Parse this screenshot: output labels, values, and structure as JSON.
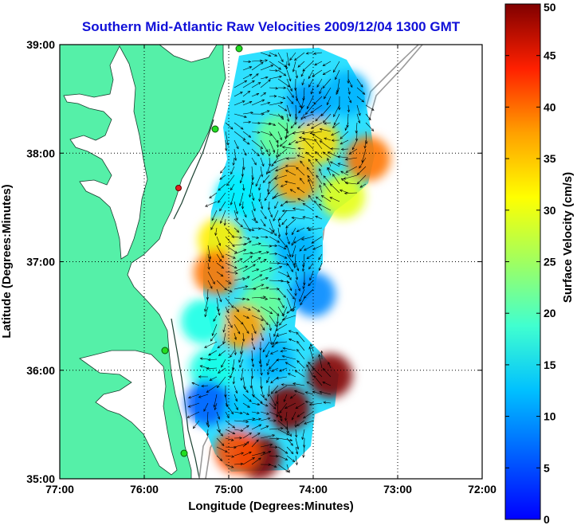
{
  "chart_data": {
    "type": "heatmap",
    "title": "Southern Mid-Atlantic Raw Velocities 2009/12/04 1300 GMT",
    "xlabel": "Longitude (Degrees:Minutes)",
    "ylabel": "Latitude (Degrees:Minutes)",
    "colorbar_label": "Surface Velocity (cm/s)",
    "xlim": [
      -77,
      -72
    ],
    "ylim": [
      35,
      39
    ],
    "clim": [
      0,
      50
    ],
    "x_ticks": [
      -77,
      -76,
      -75,
      -74,
      -73,
      -72
    ],
    "x_tick_labels": [
      "77:00",
      "76:00",
      "75:00",
      "74:00",
      "73:00",
      "72:00"
    ],
    "y_ticks": [
      35,
      36,
      37,
      38,
      39
    ],
    "y_tick_labels": [
      "35:00",
      "36:00",
      "37:00",
      "38:00",
      "39:00"
    ],
    "colorbar_ticks": [
      0,
      5,
      10,
      15,
      20,
      25,
      30,
      35,
      40,
      45,
      50
    ],
    "colorbar_tick_labels": [
      "0",
      "5",
      "10",
      "15",
      "20",
      "25",
      "30",
      "35",
      "40",
      "45",
      "50"
    ],
    "grid": true,
    "regions": [
      {
        "lon": -74.05,
        "lat": 38.45,
        "value": 14
      },
      {
        "lon": -73.6,
        "lat": 38.55,
        "value": 15
      },
      {
        "lon": -74.4,
        "lat": 38.15,
        "value": 24
      },
      {
        "lon": -73.95,
        "lat": 38.1,
        "value": 33
      },
      {
        "lon": -73.35,
        "lat": 37.95,
        "value": 38
      },
      {
        "lon": -74.2,
        "lat": 37.75,
        "value": 36
      },
      {
        "lon": -73.65,
        "lat": 37.6,
        "value": 30
      },
      {
        "lon": -74.9,
        "lat": 37.6,
        "value": 18
      },
      {
        "lon": -75.1,
        "lat": 37.2,
        "value": 32
      },
      {
        "lon": -75.15,
        "lat": 36.9,
        "value": 38
      },
      {
        "lon": -74.7,
        "lat": 37.0,
        "value": 22
      },
      {
        "lon": -74.2,
        "lat": 37.1,
        "value": 15
      },
      {
        "lon": -74.0,
        "lat": 36.7,
        "value": 13
      },
      {
        "lon": -74.6,
        "lat": 36.6,
        "value": 24
      },
      {
        "lon": -74.85,
        "lat": 36.4,
        "value": 36
      },
      {
        "lon": -75.3,
        "lat": 36.45,
        "value": 20
      },
      {
        "lon": -74.5,
        "lat": 36.1,
        "value": 15
      },
      {
        "lon": -75.2,
        "lat": 36.0,
        "value": 20
      },
      {
        "lon": -75.25,
        "lat": 35.7,
        "value": 11
      },
      {
        "lon": -74.8,
        "lat": 35.6,
        "value": 16
      },
      {
        "lon": -74.3,
        "lat": 35.65,
        "value": 50
      },
      {
        "lon": -73.8,
        "lat": 35.95,
        "value": 50
      },
      {
        "lon": -74.65,
        "lat": 35.2,
        "value": 50
      },
      {
        "lon": -74.9,
        "lat": 35.25,
        "value": 40
      }
    ]
  }
}
